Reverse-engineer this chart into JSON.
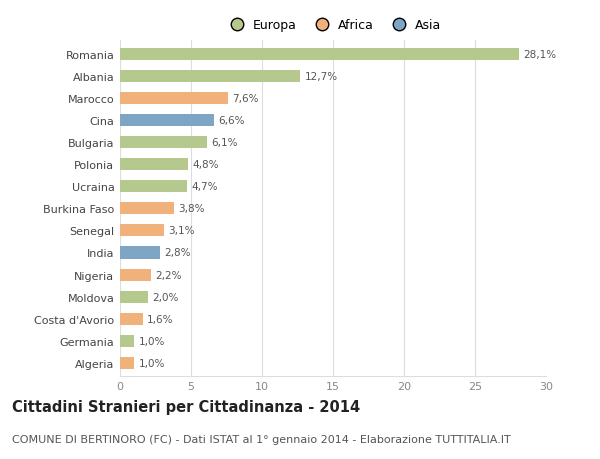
{
  "categories": [
    "Romania",
    "Albania",
    "Marocco",
    "Cina",
    "Bulgaria",
    "Polonia",
    "Ucraina",
    "Burkina Faso",
    "Senegal",
    "India",
    "Nigeria",
    "Moldova",
    "Costa d'Avorio",
    "Germania",
    "Algeria"
  ],
  "values": [
    28.1,
    12.7,
    7.6,
    6.6,
    6.1,
    4.8,
    4.7,
    3.8,
    3.1,
    2.8,
    2.2,
    2.0,
    1.6,
    1.0,
    1.0
  ],
  "labels": [
    "28,1%",
    "12,7%",
    "7,6%",
    "6,6%",
    "6,1%",
    "4,8%",
    "4,7%",
    "3,8%",
    "3,1%",
    "2,8%",
    "2,2%",
    "2,0%",
    "1,6%",
    "1,0%",
    "1,0%"
  ],
  "continent": [
    "Europa",
    "Europa",
    "Africa",
    "Asia",
    "Europa",
    "Europa",
    "Europa",
    "Africa",
    "Africa",
    "Asia",
    "Africa",
    "Europa",
    "Africa",
    "Europa",
    "Africa"
  ],
  "colors": {
    "Europa": "#b5c98e",
    "Africa": "#f0b27a",
    "Asia": "#7ea6c4"
  },
  "xlim": [
    0,
    30
  ],
  "xticks": [
    0,
    5,
    10,
    15,
    20,
    25,
    30
  ],
  "title": "Cittadini Stranieri per Cittadinanza - 2014",
  "subtitle": "COMUNE DI BERTINORO (FC) - Dati ISTAT al 1° gennaio 2014 - Elaborazione TUTTITALIA.IT",
  "background_color": "#ffffff",
  "grid_color": "#dddddd",
  "bar_height": 0.55,
  "title_fontsize": 10.5,
  "subtitle_fontsize": 8,
  "label_fontsize": 7.5,
  "tick_fontsize": 8,
  "legend_fontsize": 9
}
